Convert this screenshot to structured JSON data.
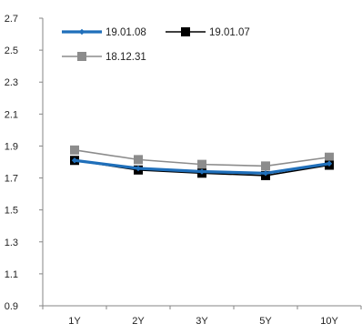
{
  "chart_data": {
    "type": "line",
    "categories": [
      "1Y",
      "2Y",
      "3Y",
      "5Y",
      "10Y"
    ],
    "ylim": [
      0.9,
      2.7
    ],
    "yticks": [
      "0.9",
      "1.1",
      "1.3",
      "1.5",
      "1.7",
      "1.9",
      "2.1",
      "2.3",
      "2.5",
      "2.7"
    ],
    "grid": false,
    "legend_position": "top-left",
    "series": [
      {
        "name": "19.01.08",
        "values": [
          1.81,
          1.76,
          1.74,
          1.73,
          1.79
        ],
        "color": "#1f6fba",
        "marker": "diamond"
      },
      {
        "name": "19.01.07",
        "values": [
          1.81,
          1.75,
          1.73,
          1.715,
          1.78
        ],
        "color": "#000000",
        "marker": "square"
      },
      {
        "name": "18.12.31",
        "values": [
          1.875,
          1.815,
          1.785,
          1.775,
          1.83
        ],
        "color": "#8c8c8c",
        "marker": "square"
      }
    ]
  }
}
